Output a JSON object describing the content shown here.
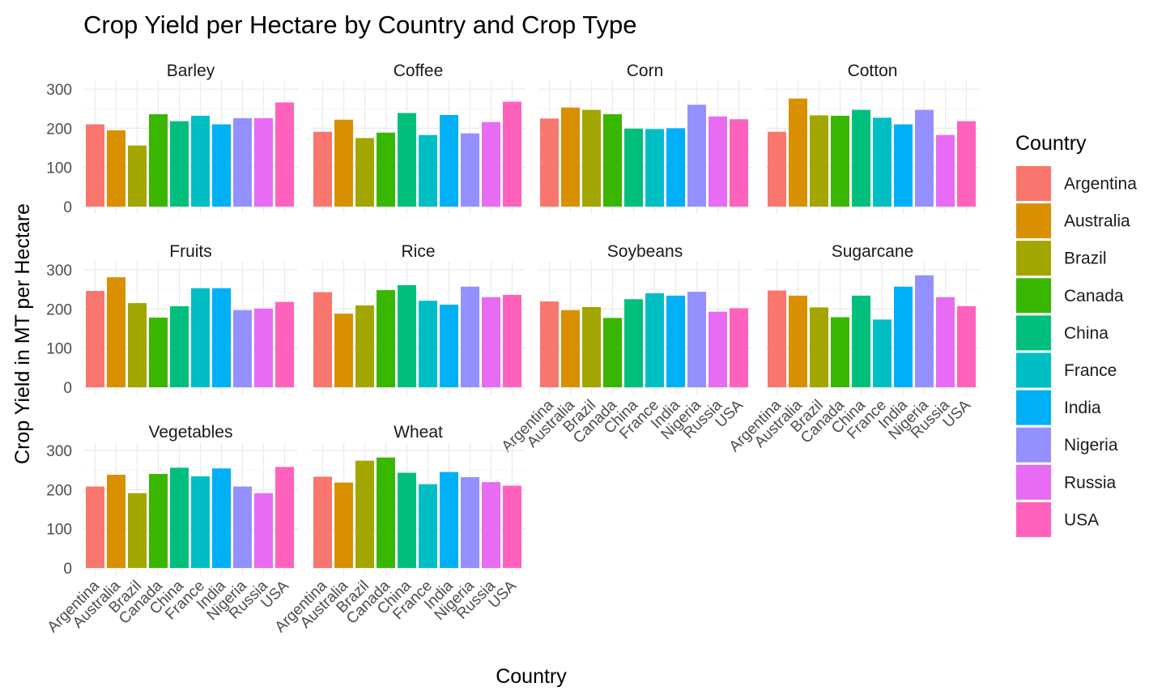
{
  "chart_data": {
    "type": "bar",
    "title": "Crop Yield per Hectare by Country and Crop Type",
    "xlabel": "Country",
    "ylabel": "Crop Yield in MT per Hectare",
    "ylim": [
      0,
      300
    ],
    "yticks": [
      0,
      100,
      200,
      300
    ],
    "grid": true,
    "legend": {
      "title": "Country",
      "position": "right"
    },
    "categories": [
      "Argentina",
      "Australia",
      "Brazil",
      "Canada",
      "China",
      "France",
      "India",
      "Nigeria",
      "Russia",
      "USA"
    ],
    "colors": {
      "Argentina": "#F8766D",
      "Australia": "#D89000",
      "Brazil": "#A3A500",
      "Canada": "#39B600",
      "China": "#00BF7D",
      "France": "#00BFC4",
      "India": "#00B0F6",
      "Nigeria": "#9590FF",
      "Russia": "#E76BF3",
      "USA": "#FF62BC"
    },
    "facets": [
      {
        "name": "Barley",
        "values": [
          210,
          195,
          156,
          236,
          218,
          232,
          210,
          226,
          226,
          266
        ]
      },
      {
        "name": "Coffee",
        "values": [
          191,
          222,
          175,
          189,
          239,
          183,
          234,
          187,
          216,
          268
        ]
      },
      {
        "name": "Corn",
        "values": [
          225,
          253,
          247,
          236,
          199,
          198,
          200,
          260,
          230,
          223
        ]
      },
      {
        "name": "Cotton",
        "values": [
          191,
          276,
          233,
          232,
          247,
          227,
          210,
          247,
          183,
          218
        ]
      },
      {
        "name": "Fruits",
        "values": [
          246,
          281,
          215,
          178,
          207,
          253,
          253,
          197,
          201,
          218
        ]
      },
      {
        "name": "Rice",
        "values": [
          243,
          188,
          209,
          248,
          261,
          221,
          211,
          257,
          230,
          236
        ]
      },
      {
        "name": "Soybeans",
        "values": [
          219,
          197,
          205,
          177,
          225,
          240,
          234,
          244,
          193,
          202
        ]
      },
      {
        "name": "Sugarcane",
        "values": [
          247,
          234,
          204,
          179,
          234,
          173,
          257,
          286,
          230,
          207
        ]
      },
      {
        "name": "Vegetables",
        "values": [
          208,
          238,
          191,
          240,
          256,
          234,
          254,
          208,
          191,
          258
        ]
      },
      {
        "name": "Wheat",
        "values": [
          233,
          218,
          274,
          282,
          243,
          214,
          245,
          232,
          219,
          210
        ]
      }
    ]
  }
}
